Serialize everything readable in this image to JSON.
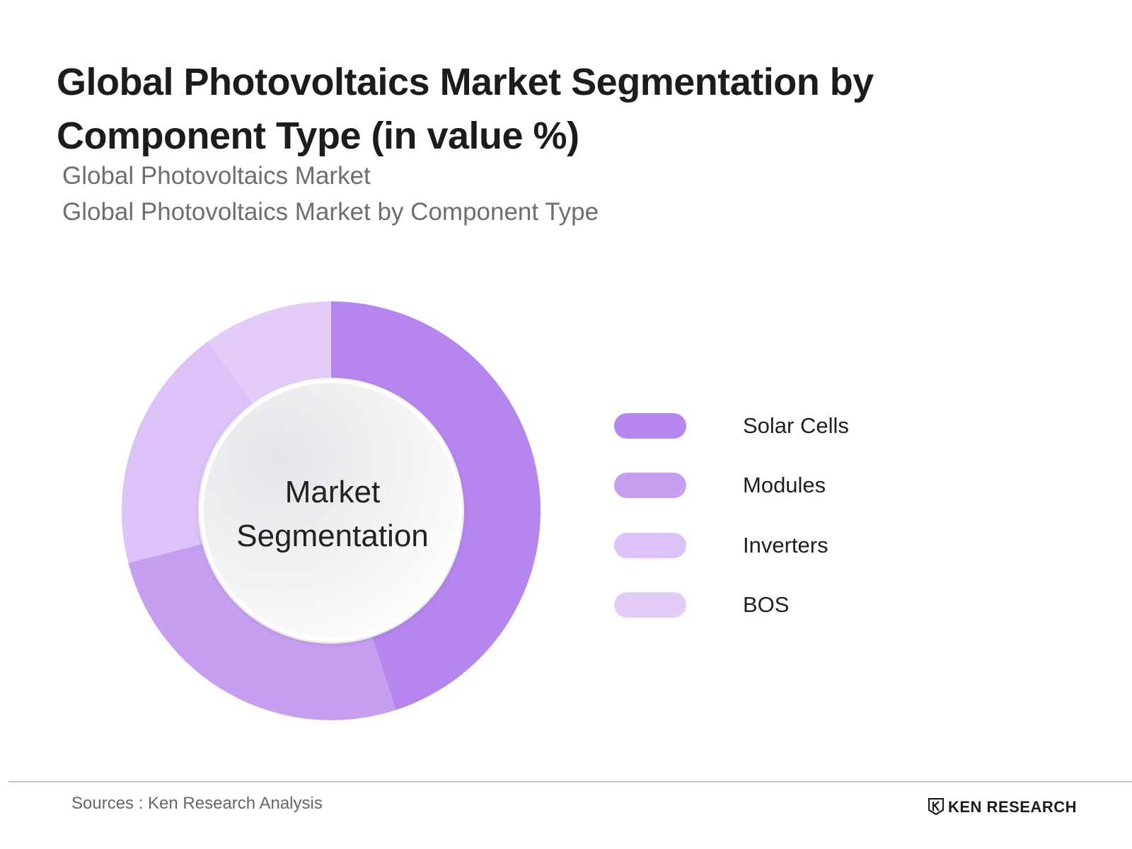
{
  "chart_data": {
    "type": "pie",
    "title": "Global Photovoltaics Market Segmentation by Component Type (in value %)",
    "subtitle": [
      "Global Photovoltaics Market",
      "Global Photovoltaics Market by Component Type"
    ],
    "center_label": [
      "Market",
      "Segmentation"
    ],
    "categories": [
      "Solar Cells",
      "Modules",
      "Inverters",
      "BOS"
    ],
    "values": [
      45,
      26,
      19,
      10
    ],
    "colors": [
      "#b586ee",
      "#c79ff0",
      "#dcc2f6",
      "#e3cdf8"
    ],
    "legend_position": "right",
    "donut": true
  },
  "footer": {
    "sources": "Sources : Ken Research Analysis",
    "brand": "KEN RESEARCH"
  },
  "icons": {
    "brand_logo": "ken-research-logo-icon"
  }
}
